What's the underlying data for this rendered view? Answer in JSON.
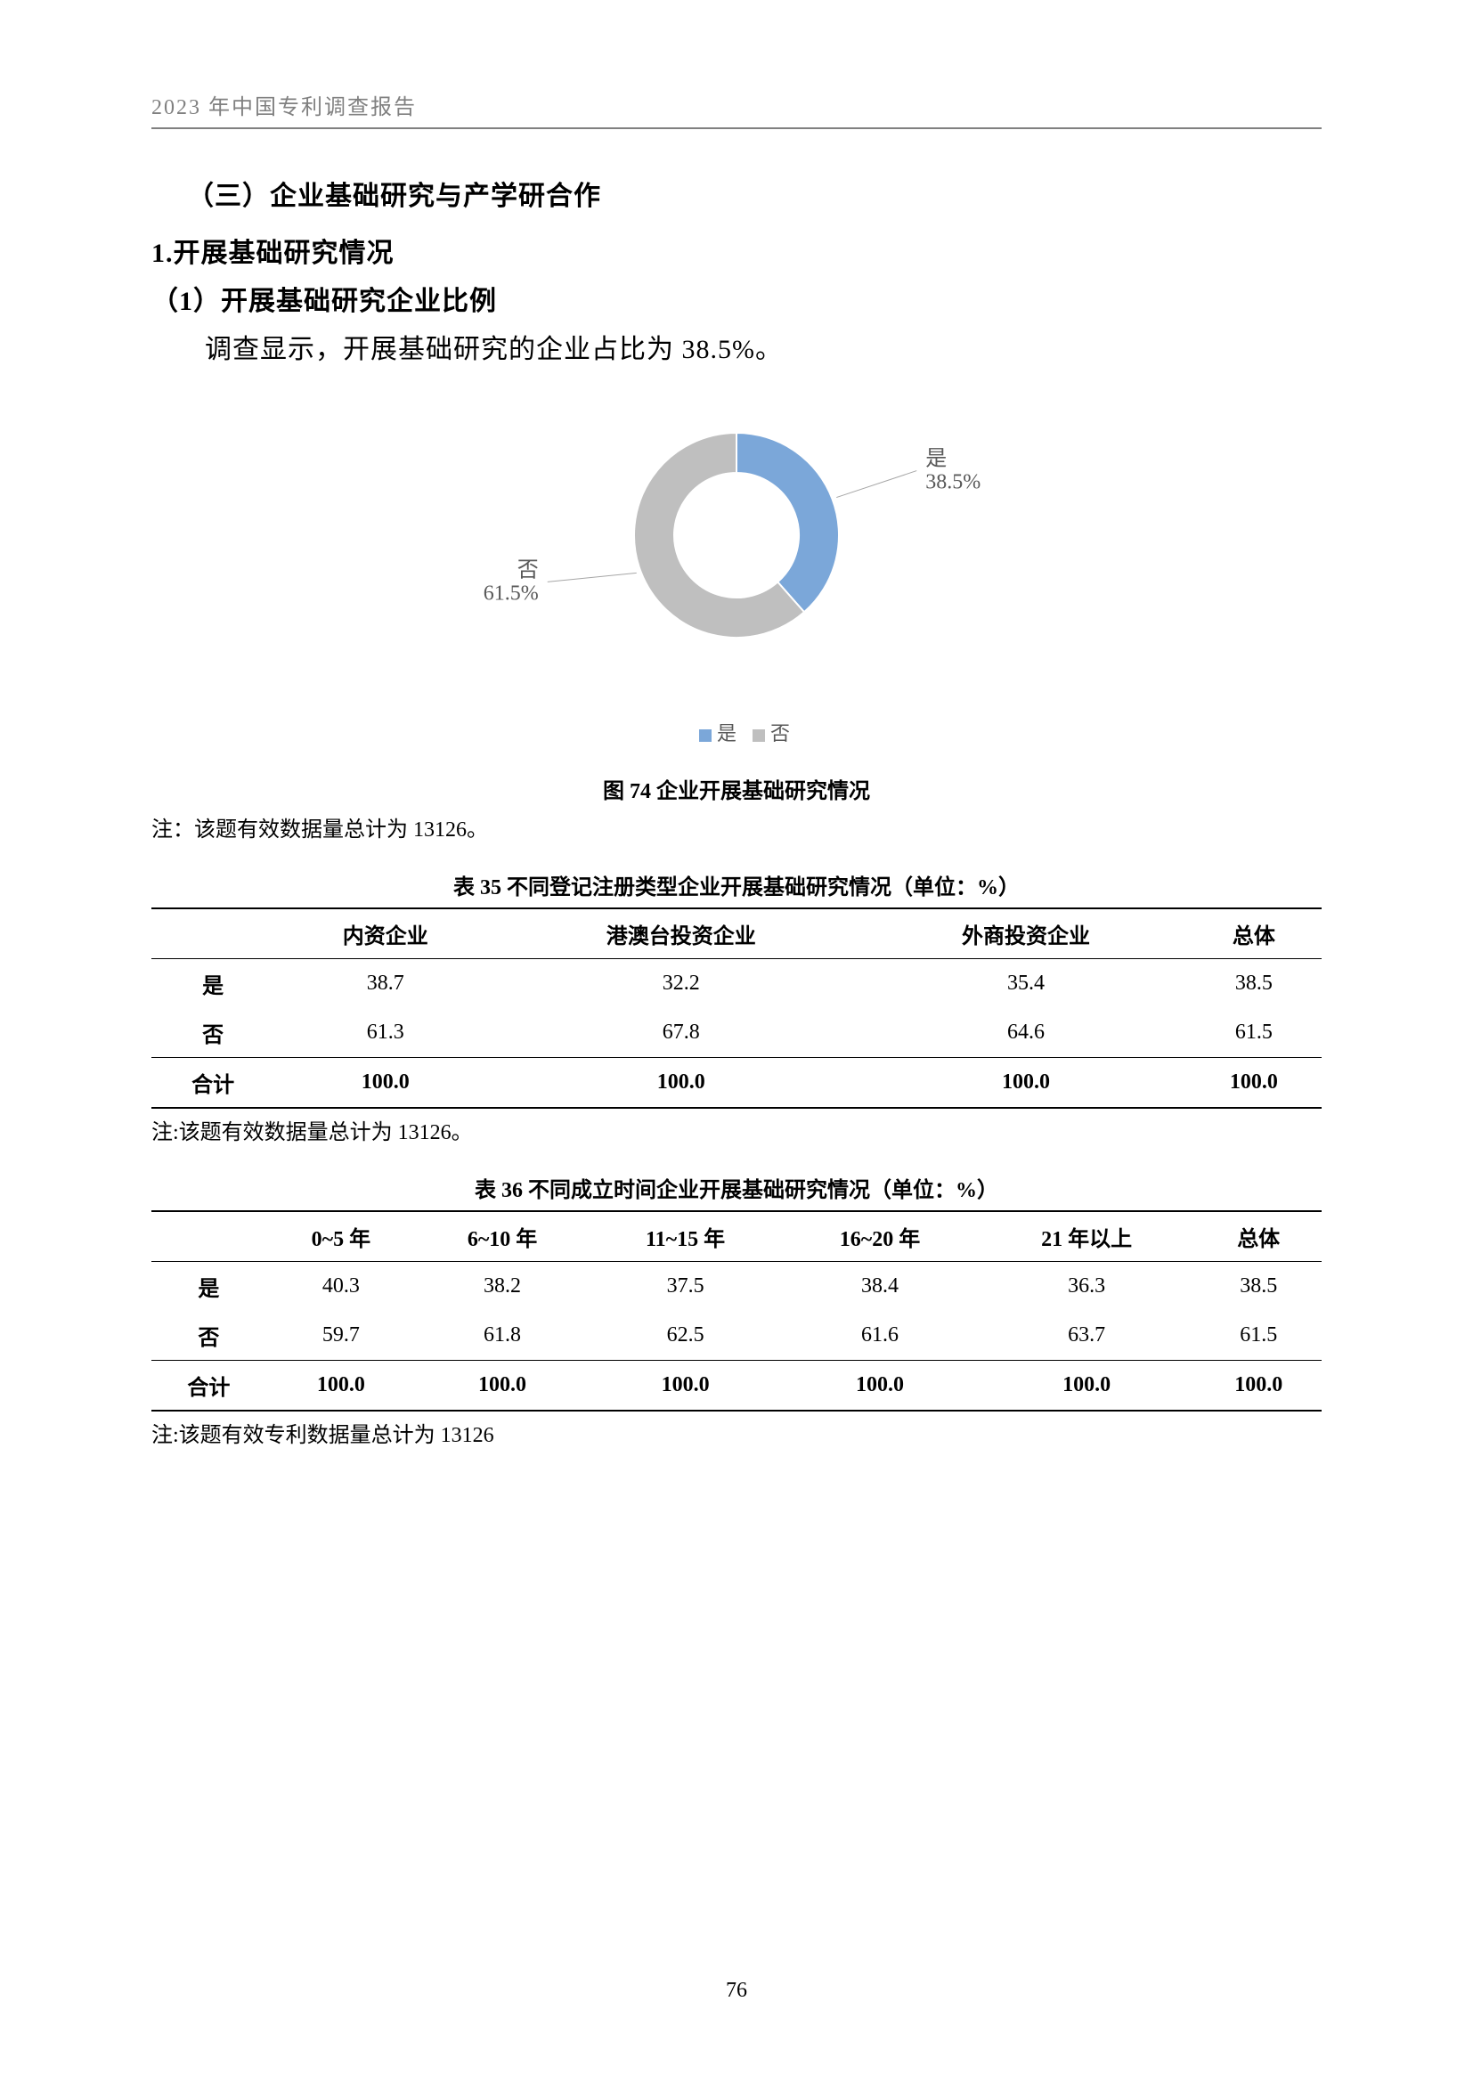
{
  "header": "2023 年中国专利调查报告",
  "h3": "（三）企业基础研究与产学研合作",
  "h4": "1.开展基础研究情况",
  "h5": "（1）开展基础研究企业比例",
  "body": "调查显示，开展基础研究的企业占比为 38.5%。",
  "chart": {
    "type": "donut",
    "slices": [
      {
        "label": "是",
        "value": 38.5,
        "color": "#7ba7d9",
        "callout": "是\n38.5%"
      },
      {
        "label": "否",
        "value": 61.5,
        "color": "#bfbfbf",
        "callout": "否\n61.5%"
      }
    ],
    "inner_radius": 70,
    "outer_radius": 115,
    "legend": [
      {
        "swatch": "#7ba7d9",
        "text": "是"
      },
      {
        "swatch": "#bfbfbf",
        "text": "否"
      }
    ],
    "caption": "图 74  企业开展基础研究情况",
    "note": "注：该题有效数据量总计为 13126。"
  },
  "table35": {
    "caption": "表 35  不同登记注册类型企业开展基础研究情况（单位：%）",
    "columns": [
      "",
      "内资企业",
      "港澳台投资企业",
      "外商投资企业",
      "总体"
    ],
    "rows": [
      [
        "是",
        "38.7",
        "32.2",
        "35.4",
        "38.5"
      ],
      [
        "否",
        "61.3",
        "67.8",
        "64.6",
        "61.5"
      ]
    ],
    "totalRow": [
      "合计",
      "100.0",
      "100.0",
      "100.0",
      "100.0"
    ],
    "note": "注:该题有效数据量总计为 13126。"
  },
  "table36": {
    "caption": "表 36  不同成立时间企业开展基础研究情况（单位：%）",
    "columns": [
      "",
      "0~5 年",
      "6~10 年",
      "11~15 年",
      "16~20 年",
      "21 年以上",
      "总体"
    ],
    "rows": [
      [
        "是",
        "40.3",
        "38.2",
        "37.5",
        "38.4",
        "36.3",
        "38.5"
      ],
      [
        "否",
        "59.7",
        "61.8",
        "62.5",
        "61.6",
        "63.7",
        "61.5"
      ]
    ],
    "totalRow": [
      "合计",
      "100.0",
      "100.0",
      "100.0",
      "100.0",
      "100.0",
      "100.0"
    ],
    "note": "注:该题有效专利数据量总计为 13126"
  },
  "pageNumber": "76"
}
